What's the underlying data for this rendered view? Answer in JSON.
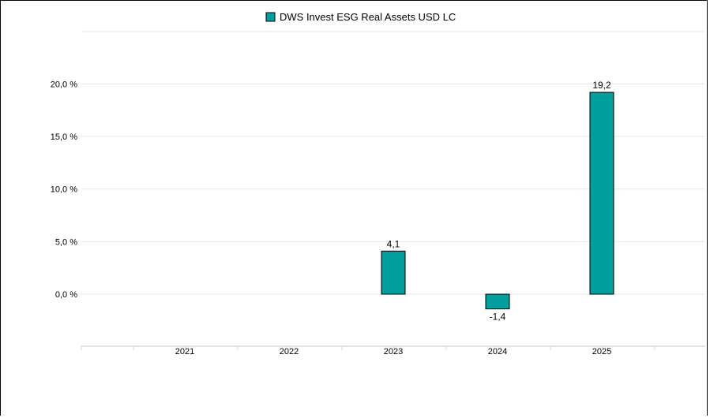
{
  "chart_data": {
    "type": "bar",
    "categories": [
      "2021",
      "2022",
      "2023",
      "2024",
      "2025"
    ],
    "series": [
      {
        "name": "DWS Invest ESG Real Assets USD LC",
        "values": [
          null,
          null,
          4.1,
          -1.4,
          19.2
        ],
        "data_labels": [
          "",
          "",
          "4,1",
          "-1,4",
          "19,2"
        ],
        "color": "#009e9e"
      }
    ],
    "y_ticks": [
      0,
      5,
      10,
      15,
      20
    ],
    "y_tick_labels": [
      "0,0 %",
      "5,0 %",
      "10,0 %",
      "15,0 %",
      "20,0 %"
    ],
    "ylim": [
      -5,
      25
    ],
    "grid": true,
    "legend_position": "top-center",
    "title": "",
    "xlabel": "",
    "ylabel": ""
  }
}
